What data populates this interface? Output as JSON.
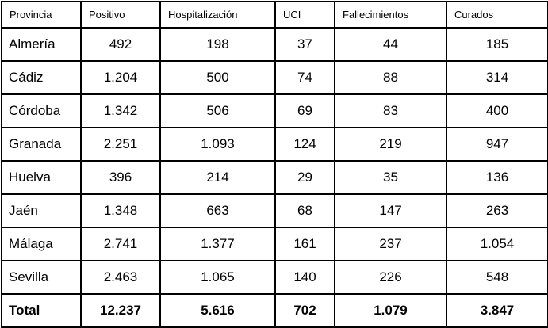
{
  "table": {
    "columns": [
      "Provincia",
      "Positivo",
      "Hospitalización",
      "UCI",
      "Fallecimientos",
      "Curados"
    ],
    "rows": [
      [
        "Almería",
        "492",
        "198",
        "37",
        "44",
        "185"
      ],
      [
        "Cádiz",
        "1.204",
        "500",
        "74",
        "88",
        "314"
      ],
      [
        "Córdoba",
        "1.342",
        "506",
        "69",
        "83",
        "400"
      ],
      [
        "Granada",
        "2.251",
        "1.093",
        "124",
        "219",
        "947"
      ],
      [
        "Huelva",
        "396",
        "214",
        "29",
        "35",
        "136"
      ],
      [
        "Jaén",
        "1.348",
        "663",
        "68",
        "147",
        "263"
      ],
      [
        "Málaga",
        "2.741",
        "1.377",
        "161",
        "237",
        "1.054"
      ],
      [
        "Sevilla",
        "2.463",
        "1.065",
        "140",
        "226",
        "548"
      ]
    ],
    "total_row": [
      "Total",
      "12.237",
      "5.616",
      "702",
      "1.079",
      "3.847"
    ]
  },
  "colors": {
    "border": "#000000",
    "text": "#000000",
    "background": "#ffffff"
  },
  "chart_data": {
    "type": "table",
    "title": "",
    "columns": [
      "Provincia",
      "Positivo",
      "Hospitalización",
      "UCI",
      "Fallecimientos",
      "Curados"
    ],
    "categories": [
      "Almería",
      "Cádiz",
      "Córdoba",
      "Granada",
      "Huelva",
      "Jaén",
      "Málaga",
      "Sevilla",
      "Total"
    ],
    "series": [
      {
        "name": "Positivo",
        "values": [
          492,
          1204,
          1342,
          2251,
          396,
          1348,
          2741,
          2463,
          12237
        ]
      },
      {
        "name": "Hospitalización",
        "values": [
          198,
          500,
          506,
          1093,
          214,
          663,
          1377,
          1065,
          5616
        ]
      },
      {
        "name": "UCI",
        "values": [
          37,
          74,
          69,
          124,
          29,
          68,
          161,
          140,
          702
        ]
      },
      {
        "name": "Fallecimientos",
        "values": [
          44,
          88,
          83,
          219,
          35,
          147,
          237,
          226,
          1079
        ]
      },
      {
        "name": "Curados",
        "values": [
          185,
          314,
          400,
          947,
          136,
          263,
          1054,
          548,
          3847
        ]
      }
    ],
    "layout": {
      "grid": "full-borders",
      "total_row_bold": true,
      "number_format": "es-ES thousands dot"
    }
  }
}
